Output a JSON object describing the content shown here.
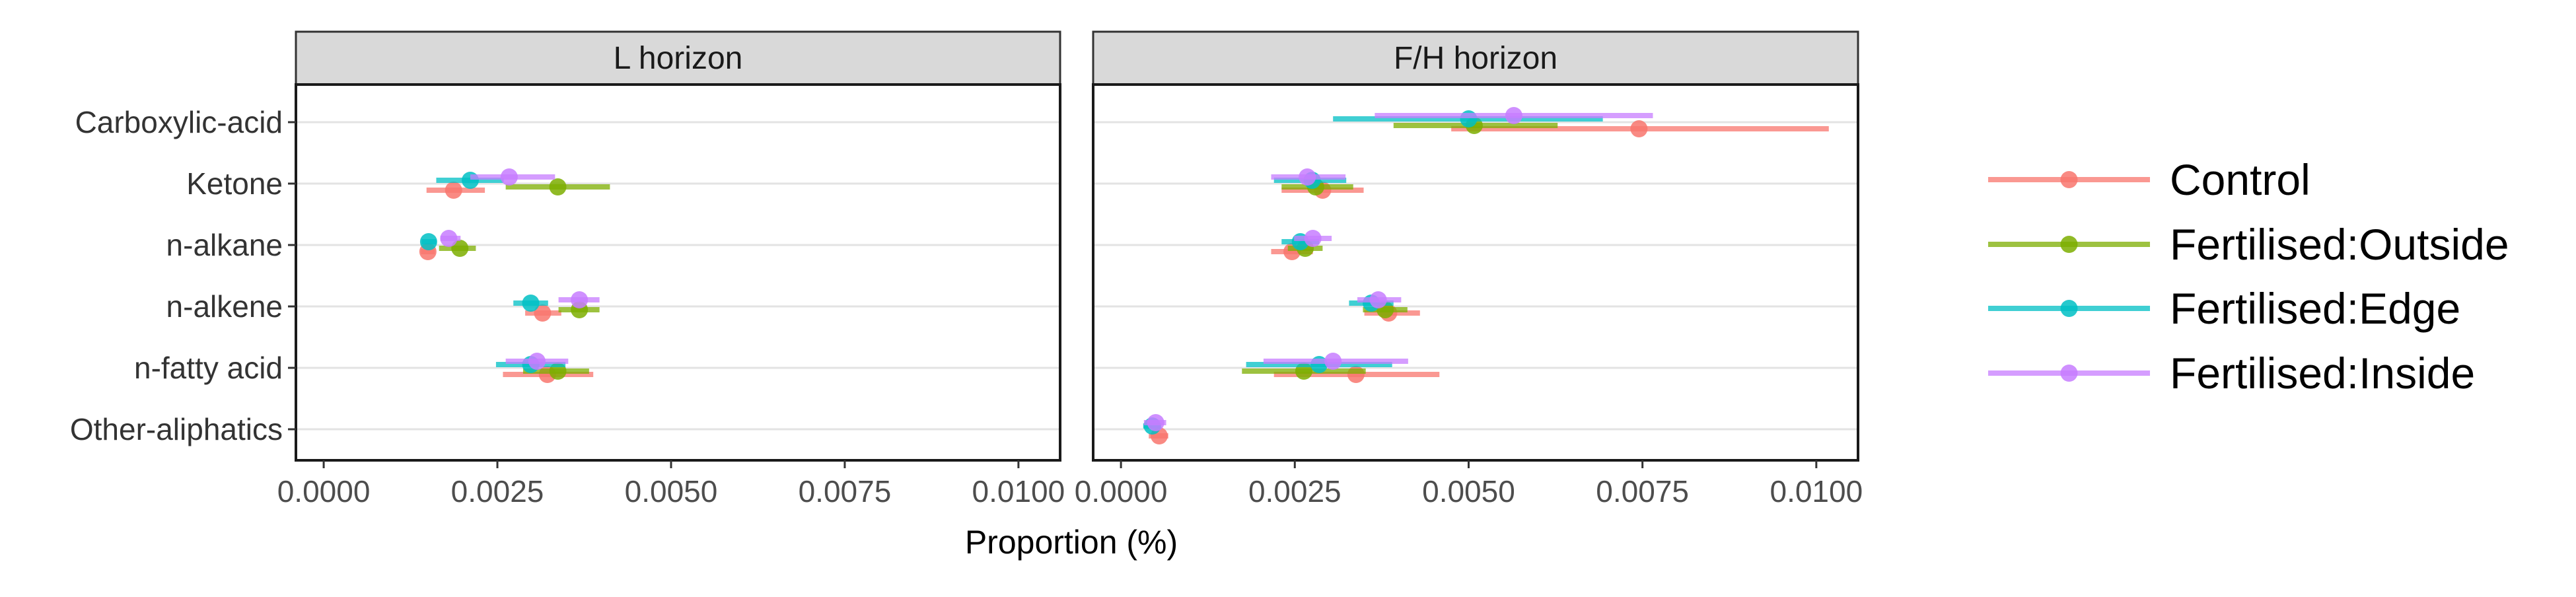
{
  "chart_data": {
    "type": "scatter",
    "subtype": "point-range (faceted)",
    "xlabel": "Proportion (%)",
    "categories": [
      "Carboxylic-acid",
      "Ketone",
      "n-alkane",
      "n-alkene",
      "n-fatty acid",
      "Other-aliphatics"
    ],
    "xlim": [
      -0.0004,
      0.0106
    ],
    "xticks": [
      0.0,
      0.0025,
      0.005,
      0.0075,
      0.01
    ],
    "xtick_labels": [
      "0.0000",
      "0.0025",
      "0.0050",
      "0.0075",
      "0.0100"
    ],
    "grid": true,
    "legend_position": "right",
    "series_styles": [
      {
        "name": "Control",
        "color": "#F8766D"
      },
      {
        "name": "Fertilised:Outside",
        "color": "#7CAE00"
      },
      {
        "name": "Fertilised:Edge",
        "color": "#00BFC4"
      },
      {
        "name": "Fertilised:Inside",
        "color": "#C77CFF"
      }
    ],
    "panels": [
      {
        "strip": "L horizon",
        "series": [
          {
            "name": "Control",
            "points": [
              {
                "category": "Ketone",
                "x": 0.00187,
                "lo": 0.00148,
                "hi": 0.00232
              },
              {
                "category": "n-alkane",
                "x": 0.0015,
                "lo": 0.0014,
                "hi": 0.0016
              },
              {
                "category": "n-alkene",
                "x": 0.00315,
                "lo": 0.0029,
                "hi": 0.00342
              },
              {
                "category": "n-fatty acid",
                "x": 0.00322,
                "lo": 0.00258,
                "hi": 0.00388
              }
            ]
          },
          {
            "name": "Fertilised:Outside",
            "points": [
              {
                "category": "Ketone",
                "x": 0.00337,
                "lo": 0.00262,
                "hi": 0.00412
              },
              {
                "category": "n-alkane",
                "x": 0.00196,
                "lo": 0.00166,
                "hi": 0.00219
              },
              {
                "category": "n-alkene",
                "x": 0.00368,
                "lo": 0.00338,
                "hi": 0.00397
              },
              {
                "category": "n-fatty acid",
                "x": 0.00337,
                "lo": 0.00287,
                "hi": 0.00382
              }
            ]
          },
          {
            "name": "Fertilised:Edge",
            "points": [
              {
                "category": "Ketone",
                "x": 0.00211,
                "lo": 0.00162,
                "hi": 0.00259
              },
              {
                "category": "n-alkane",
                "x": 0.00151,
                "lo": 0.00141,
                "hi": 0.00162
              },
              {
                "category": "n-alkene",
                "x": 0.00298,
                "lo": 0.00273,
                "hi": 0.00323
              },
              {
                "category": "n-fatty acid",
                "x": 0.00298,
                "lo": 0.00248,
                "hi": 0.00348
              }
            ]
          },
          {
            "name": "Fertilised:Inside",
            "points": [
              {
                "category": "Ketone",
                "x": 0.00267,
                "lo": 0.00211,
                "hi": 0.00333
              },
              {
                "category": "n-alkane",
                "x": 0.0018,
                "lo": 0.00168,
                "hi": 0.00197
              },
              {
                "category": "n-alkene",
                "x": 0.00368,
                "lo": 0.00338,
                "hi": 0.00397
              },
              {
                "category": "n-fatty acid",
                "x": 0.00307,
                "lo": 0.00262,
                "hi": 0.00352
              }
            ]
          }
        ]
      },
      {
        "strip": "F/H horizon",
        "series": [
          {
            "name": "Control",
            "points": [
              {
                "category": "Carboxylic-acid",
                "x": 0.00745,
                "lo": 0.00475,
                "hi": 0.01018
              },
              {
                "category": "Ketone",
                "x": 0.0029,
                "lo": 0.00231,
                "hi": 0.00349
              },
              {
                "category": "n-alkane",
                "x": 0.00246,
                "lo": 0.00216,
                "hi": 0.00276
              },
              {
                "category": "n-alkene",
                "x": 0.00385,
                "lo": 0.0035,
                "hi": 0.0043
              },
              {
                "category": "n-fatty acid",
                "x": 0.00338,
                "lo": 0.0022,
                "hi": 0.00458
              },
              {
                "category": "Other-aliphatics",
                "x": 0.00055,
                "lo": 0.0004,
                "hi": 0.00068
              }
            ]
          },
          {
            "name": "Fertilised:Outside",
            "points": [
              {
                "category": "Carboxylic-acid",
                "x": 0.00508,
                "lo": 0.00392,
                "hi": 0.00628
              },
              {
                "category": "Ketone",
                "x": 0.0028,
                "lo": 0.00231,
                "hi": 0.00334
              },
              {
                "category": "n-alkane",
                "x": 0.00265,
                "lo": 0.0024,
                "hi": 0.0029
              },
              {
                "category": "n-alkene",
                "x": 0.0038,
                "lo": 0.00348,
                "hi": 0.00412
              },
              {
                "category": "n-fatty acid",
                "x": 0.00263,
                "lo": 0.00174,
                "hi": 0.00352
              }
            ]
          },
          {
            "name": "Fertilised:Edge",
            "points": [
              {
                "category": "Carboxylic-acid",
                "x": 0.005,
                "lo": 0.00305,
                "hi": 0.00693
              },
              {
                "category": "Ketone",
                "x": 0.00275,
                "lo": 0.0022,
                "hi": 0.00324
              },
              {
                "category": "n-alkane",
                "x": 0.00258,
                "lo": 0.00231,
                "hi": 0.00285
              },
              {
                "category": "n-alkene",
                "x": 0.0036,
                "lo": 0.00328,
                "hi": 0.00392
              },
              {
                "category": "n-fatty acid",
                "x": 0.00285,
                "lo": 0.0018,
                "hi": 0.0039
              },
              {
                "category": "Other-aliphatics",
                "x": 0.00045,
                "lo": 0.00032,
                "hi": 0.00058
              }
            ]
          },
          {
            "name": "Fertilised:Inside",
            "points": [
              {
                "category": "Carboxylic-acid",
                "x": 0.00565,
                "lo": 0.00365,
                "hi": 0.00765
              },
              {
                "category": "Ketone",
                "x": 0.00268,
                "lo": 0.00216,
                "hi": 0.00323
              },
              {
                "category": "n-alkane",
                "x": 0.00276,
                "lo": 0.00249,
                "hi": 0.00303
              },
              {
                "category": "n-alkene",
                "x": 0.0037,
                "lo": 0.0034,
                "hi": 0.00403
              },
              {
                "category": "n-fatty acid",
                "x": 0.00305,
                "lo": 0.00205,
                "hi": 0.00413
              },
              {
                "category": "Other-aliphatics",
                "x": 0.0005,
                "lo": 0.00033,
                "hi": 0.00065
              }
            ]
          }
        ]
      }
    ]
  }
}
